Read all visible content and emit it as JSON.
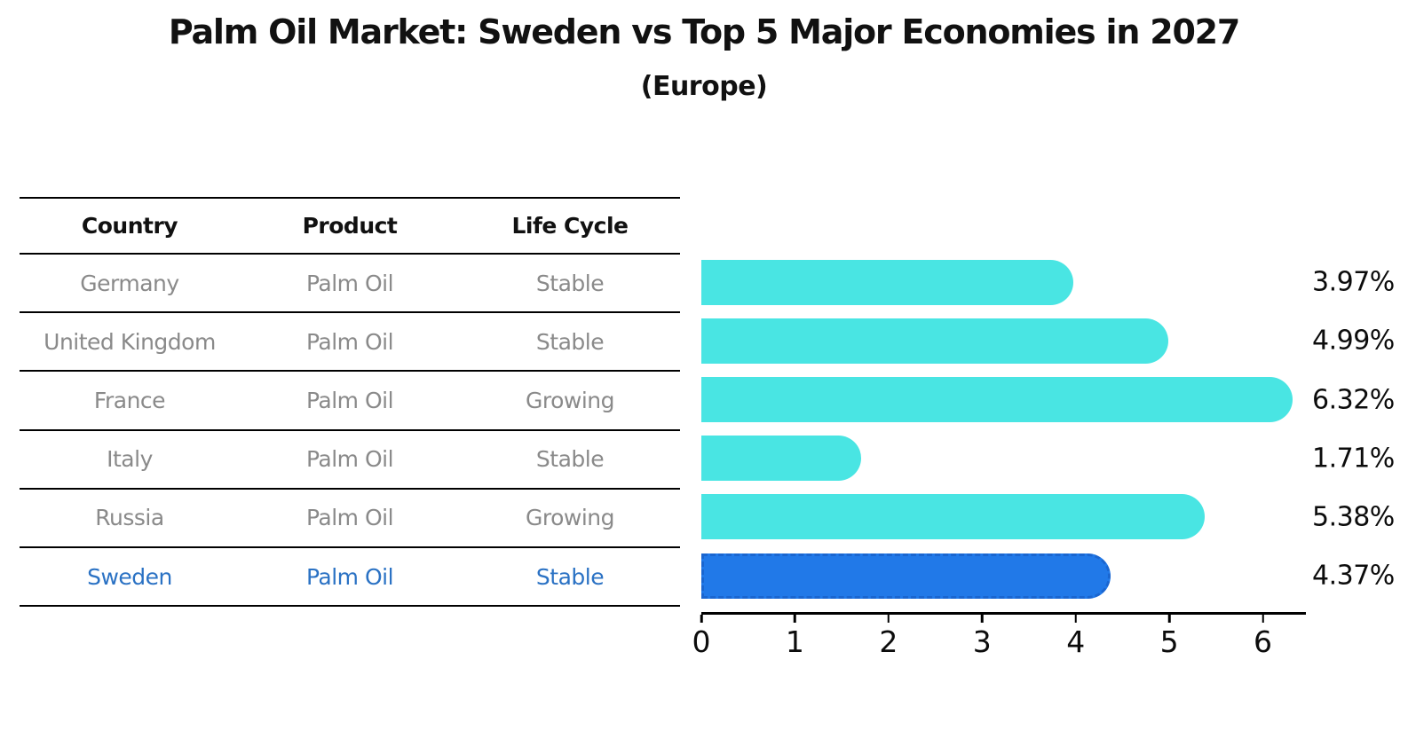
{
  "title": "Palm Oil Market: Sweden vs Top 5 Major Economies in 2027",
  "subtitle": "(Europe)",
  "colors": {
    "bar": "#49E5E3",
    "highlight_bar": "#2179E8",
    "highlight_bar_border": "#1A66D0",
    "highlight_text": "#2B72C4",
    "table_text": "#8A8A8A",
    "heading_text": "#111111",
    "axis": "#000000"
  },
  "table": {
    "headers": [
      "Country",
      "Product",
      "Life Cycle"
    ],
    "rows": [
      {
        "country": "Germany",
        "product": "Palm Oil",
        "life_cycle": "Stable",
        "highlighted": false
      },
      {
        "country": "United Kingdom",
        "product": "Palm Oil",
        "life_cycle": "Stable",
        "highlighted": false
      },
      {
        "country": "France",
        "product": "Palm Oil",
        "life_cycle": "Growing",
        "highlighted": false
      },
      {
        "country": "Italy",
        "product": "Palm Oil",
        "life_cycle": "Stable",
        "highlighted": false
      },
      {
        "country": "Russia",
        "product": "Palm Oil",
        "life_cycle": "Growing",
        "highlighted": false
      },
      {
        "country": "Sweden",
        "product": "Palm Oil",
        "life_cycle": "Stable",
        "highlighted": true
      }
    ]
  },
  "chart_data": {
    "type": "bar",
    "orientation": "horizontal",
    "title": "Palm Oil Market: Sweden vs Top 5 Major Economies in 2027",
    "subtitle": "(Europe)",
    "categories": [
      "Germany",
      "United Kingdom",
      "France",
      "Italy",
      "Russia",
      "Sweden"
    ],
    "values": [
      3.97,
      4.99,
      6.32,
      1.71,
      5.38,
      4.37
    ],
    "value_labels": [
      "3.97%",
      "4.99%",
      "6.32%",
      "1.71%",
      "5.38%",
      "4.37%"
    ],
    "highlighted_category": "Sweden",
    "x_ticks": [
      0,
      1,
      2,
      3,
      4,
      5,
      6
    ],
    "xlim": [
      0,
      6.45
    ],
    "xlabel": "",
    "ylabel": "",
    "grid": false,
    "legend": false
  }
}
